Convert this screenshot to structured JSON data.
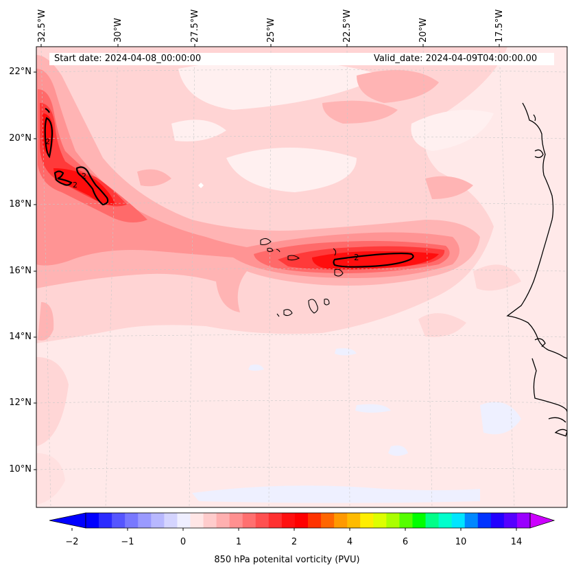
{
  "map": {
    "info": {
      "start_date": "Start date: 2024-04-08_00:00:00",
      "valid_date": "Valid_date: 2024-04-09T04:00:00.00"
    },
    "lon_labels": [
      "32.5°W",
      "30°W",
      "27.5°W",
      "25°W",
      "22.5°W",
      "20°W",
      "17.5°W"
    ],
    "lat_labels": [
      "22°N",
      "20°N",
      "18°N",
      "16°N",
      "14°N",
      "12°N",
      "10°N"
    ],
    "contour_label": "2",
    "colorbar": {
      "ticks": [
        "−2",
        "−1",
        "0",
        "1",
        "2",
        "4",
        "6",
        "10",
        "14"
      ],
      "label": "850 hPa potenital vorticity (PVU)",
      "colors": [
        "#0000ff",
        "#2b2bff",
        "#5555ff",
        "#7878ff",
        "#9a9aff",
        "#b8b8ff",
        "#d4d4ff",
        "#eeeeff",
        "#ffe6e6",
        "#ffcccc",
        "#ffb0b0",
        "#ff9090",
        "#ff7070",
        "#ff5050",
        "#ff3030",
        "#ff1010",
        "#ff0000",
        "#ff3300",
        "#ff6600",
        "#ff9900",
        "#ffbb00",
        "#ffee00",
        "#ddff00",
        "#aaff00",
        "#55ff00",
        "#00ff00",
        "#00ff88",
        "#00ffcc",
        "#00e5ff",
        "#0088ff",
        "#0033ff",
        "#2200ff",
        "#5500ff",
        "#9900ff"
      ],
      "extend_low": "#0000ff",
      "extend_high": "#cc00ff"
    }
  }
}
